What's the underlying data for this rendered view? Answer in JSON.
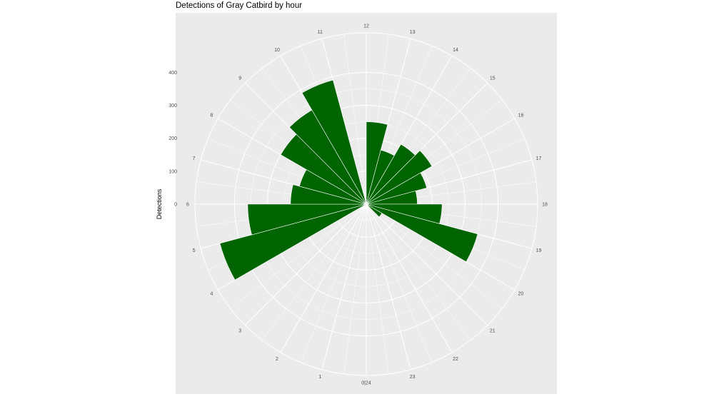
{
  "chart_data": {
    "type": "bar",
    "coord": "polar",
    "title": "Detections of Gray Catbird by hour",
    "ylabel": "Detections",
    "xlabel": "",
    "categories": [
      0,
      1,
      2,
      3,
      4,
      5,
      6,
      7,
      8,
      9,
      10,
      11,
      12,
      13,
      14,
      15,
      16,
      17,
      18,
      19,
      20,
      21,
      22,
      23
    ],
    "values": [
      0,
      0,
      0,
      0,
      0,
      460,
      360,
      230,
      210,
      300,
      330,
      390,
      0,
      250,
      170,
      210,
      230,
      190,
      155,
      230,
      350,
      55,
      0,
      0
    ],
    "hour_tick_labels": [
      "0|24",
      "1",
      "2",
      "3",
      "4",
      "5",
      "6",
      "7",
      "8",
      "9",
      "10",
      "11",
      "12",
      "13",
      "14",
      "15",
      "16",
      "17",
      "18",
      "19",
      "20",
      "21",
      "22",
      "23"
    ],
    "r_tick_labels": [
      "0",
      "100",
      "200",
      "300",
      "400"
    ],
    "r_ticks": [
      0,
      100,
      200,
      300,
      400
    ],
    "r_max": 520,
    "bar_color": "#006400",
    "panel_color": "#ebebeb",
    "grid_color": "#ffffff",
    "grid": true,
    "legend": "none"
  }
}
